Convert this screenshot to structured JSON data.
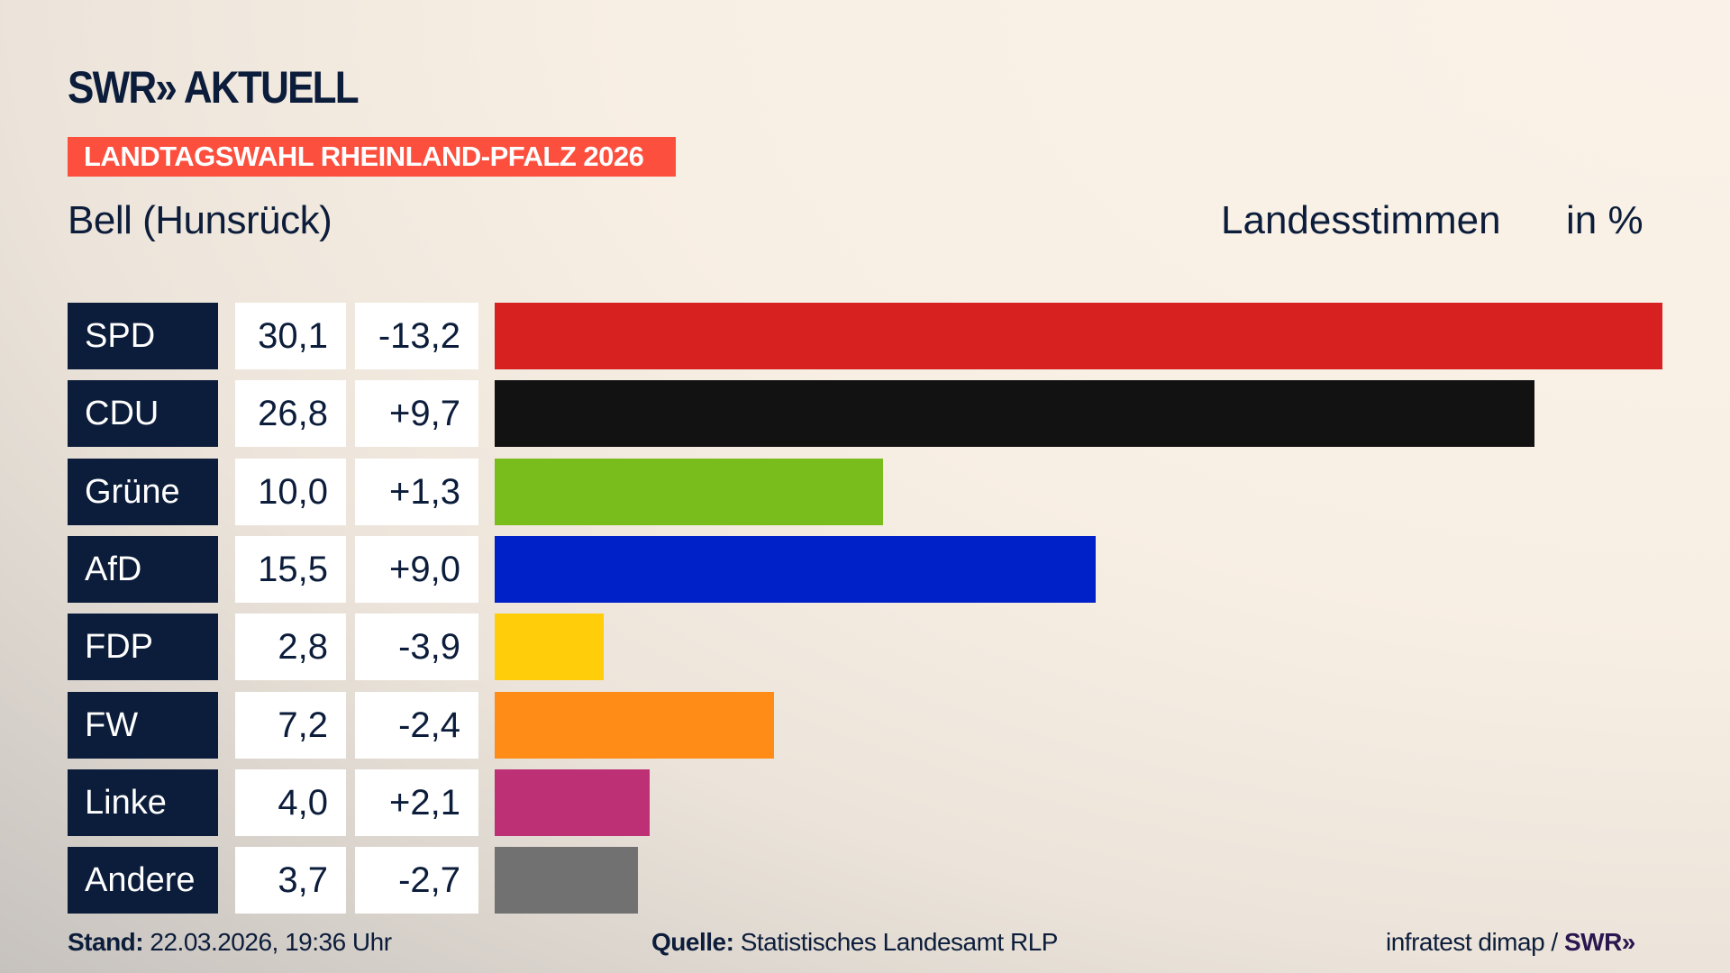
{
  "header": {
    "logo": "SWR» AKTUELL",
    "banner": "LANDTAGSWAHL RHEINLAND-PFALZ 2026",
    "subtitle": "Bell (Hunsrück)",
    "measure": "Landesstimmen",
    "unit": "in %"
  },
  "chart_data": {
    "type": "bar",
    "orientation": "horizontal",
    "categories": [
      "SPD",
      "CDU",
      "Grüne",
      "AfD",
      "FDP",
      "FW",
      "Linke",
      "Andere"
    ],
    "values": [
      30.1,
      26.8,
      10.0,
      15.5,
      2.8,
      7.2,
      4.0,
      3.7
    ],
    "value_labels": [
      "30,1",
      "26,8",
      "10,0",
      "15,5",
      "2,8",
      "7,2",
      "4,0",
      "3,7"
    ],
    "diffs": [
      -13.2,
      9.7,
      1.3,
      9.0,
      -3.9,
      -2.4,
      2.1,
      -2.7
    ],
    "diff_labels": [
      "-13,2",
      "+9,7",
      "+1,3",
      "+9,0",
      "-3,9",
      "-2,4",
      "+2,1",
      "-2,7"
    ],
    "colors": [
      "#d72020",
      "#121212",
      "#79bd1c",
      "#0021c8",
      "#ffcd0a",
      "#ff8c16",
      "#be3075",
      "#717171"
    ],
    "grid": false
  },
  "footer": {
    "stand_label": "Stand:",
    "stand_value": "22.03.2026, 19:36 Uhr",
    "source_label": "Quelle:",
    "source_value": "Statistisches Landesamt RLP",
    "credit": "infratest dimap / ",
    "credit_logo": "SWR»"
  }
}
